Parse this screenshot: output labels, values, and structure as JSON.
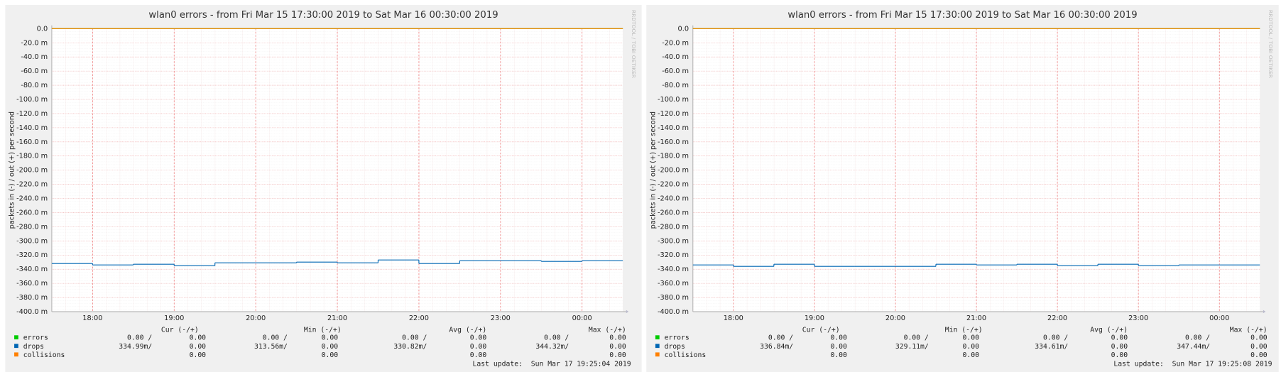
{
  "chart_data": [
    {
      "type": "line",
      "title": "wlan0 errors - from Fri Mar 15 17:30:00 2019 to Sat Mar 16 00:30:00 2019",
      "y_label": "packets in (-) / out (+) per second",
      "watermark": "RRDTOOL / TOBI OETIKER",
      "x": [
        17.5,
        18,
        18.5,
        19,
        19.5,
        20,
        20.5,
        21,
        21.5,
        22,
        22.5,
        23,
        23.5,
        24
      ],
      "xlim": [
        17.5,
        24.5
      ],
      "xticks": [
        {
          "value": 18,
          "label": "18:00"
        },
        {
          "value": 19,
          "label": "19:00"
        },
        {
          "value": 20,
          "label": "20:00"
        },
        {
          "value": 21,
          "label": "21:00"
        },
        {
          "value": 22,
          "label": "22:00"
        },
        {
          "value": 23,
          "label": "23:00"
        },
        {
          "value": 24,
          "label": "00:00"
        }
      ],
      "ylim": [
        -400,
        0
      ],
      "yticks": [
        {
          "value": 0,
          "label": "0.0"
        },
        {
          "value": -20,
          "label": "-20.0 m"
        },
        {
          "value": -40,
          "label": "-40.0 m"
        },
        {
          "value": -60,
          "label": "-60.0 m"
        },
        {
          "value": -80,
          "label": "-80.0 m"
        },
        {
          "value": -100,
          "label": "-100.0 m"
        },
        {
          "value": -120,
          "label": "-120.0 m"
        },
        {
          "value": -140,
          "label": "-140.0 m"
        },
        {
          "value": -160,
          "label": "-160.0 m"
        },
        {
          "value": -180,
          "label": "-180.0 m"
        },
        {
          "value": -200,
          "label": "-200.0 m"
        },
        {
          "value": -220,
          "label": "-220.0 m"
        },
        {
          "value": -240,
          "label": "-240.0 m"
        },
        {
          "value": -260,
          "label": "-260.0 m"
        },
        {
          "value": -280,
          "label": "-280.0 m"
        },
        {
          "value": -300,
          "label": "-300.0 m"
        },
        {
          "value": -320,
          "label": "-320.0 m"
        },
        {
          "value": -340,
          "label": "-340.0 m"
        },
        {
          "value": -360,
          "label": "-360.0 m"
        },
        {
          "value": -380,
          "label": "-380.0 m"
        },
        {
          "value": -400,
          "label": "-400.0 m"
        }
      ],
      "grid": true,
      "stat_headers": [
        "Cur (-/+)",
        "Min (-/+)",
        "Avg (-/+)",
        "Max (-/+)"
      ],
      "series": [
        {
          "name": "errors",
          "color": "#00cc00",
          "values": [
            0,
            0,
            0,
            0,
            0,
            0,
            0,
            0,
            0,
            0,
            0,
            0,
            0,
            0
          ],
          "stats": [
            "0.00 /",
            "0.00",
            "0.00 /",
            "0.00",
            "0.00 /",
            "0.00",
            "0.00 /",
            "0.00"
          ]
        },
        {
          "name": "drops",
          "color": "#0066b3",
          "values": [
            -332,
            -334,
            -333,
            -335,
            -331,
            -331,
            -330,
            -331,
            -327,
            -332,
            -328,
            -328,
            -329,
            -328
          ],
          "stats": [
            "334.99m/",
            "0.00",
            "313.56m/",
            "0.00",
            "330.82m/",
            "0.00",
            "344.32m/",
            "0.00"
          ]
        },
        {
          "name": "collisions",
          "color": "#ff8000",
          "values": [
            0,
            0,
            0,
            0,
            0,
            0,
            0,
            0,
            0,
            0,
            0,
            0,
            0,
            0
          ],
          "stats": [
            "0.00",
            "0.00",
            "0.00",
            "0.00"
          ]
        }
      ],
      "last_update": "Last update:  Sun Mar 17 19:25:04 2019"
    },
    {
      "type": "line",
      "title": "wlan0 errors - from Fri Mar 15 17:30:00 2019 to Sat Mar 16 00:30:00 2019",
      "y_label": "packets in (-) / out (+) per second",
      "watermark": "RRDTOOL / TOBI OETIKER",
      "x": [
        17.5,
        18,
        18.5,
        19,
        19.5,
        20,
        20.5,
        21,
        21.5,
        22,
        22.5,
        23,
        23.5,
        24
      ],
      "xlim": [
        17.5,
        24.5
      ],
      "xticks": [
        {
          "value": 18,
          "label": "18:00"
        },
        {
          "value": 19,
          "label": "19:00"
        },
        {
          "value": 20,
          "label": "20:00"
        },
        {
          "value": 21,
          "label": "21:00"
        },
        {
          "value": 22,
          "label": "22:00"
        },
        {
          "value": 23,
          "label": "23:00"
        },
        {
          "value": 24,
          "label": "00:00"
        }
      ],
      "ylim": [
        -400,
        0
      ],
      "yticks": [
        {
          "value": 0,
          "label": "0.0"
        },
        {
          "value": -20,
          "label": "-20.0 m"
        },
        {
          "value": -40,
          "label": "-40.0 m"
        },
        {
          "value": -60,
          "label": "-60.0 m"
        },
        {
          "value": -80,
          "label": "-80.0 m"
        },
        {
          "value": -100,
          "label": "-100.0 m"
        },
        {
          "value": -120,
          "label": "-120.0 m"
        },
        {
          "value": -140,
          "label": "-140.0 m"
        },
        {
          "value": -160,
          "label": "-160.0 m"
        },
        {
          "value": -180,
          "label": "-180.0 m"
        },
        {
          "value": -200,
          "label": "-200.0 m"
        },
        {
          "value": -220,
          "label": "-220.0 m"
        },
        {
          "value": -240,
          "label": "-240.0 m"
        },
        {
          "value": -260,
          "label": "-260.0 m"
        },
        {
          "value": -280,
          "label": "-280.0 m"
        },
        {
          "value": -300,
          "label": "-300.0 m"
        },
        {
          "value": -320,
          "label": "-320.0 m"
        },
        {
          "value": -340,
          "label": "-340.0 m"
        },
        {
          "value": -360,
          "label": "-360.0 m"
        },
        {
          "value": -380,
          "label": "-380.0 m"
        },
        {
          "value": -400,
          "label": "-400.0 m"
        }
      ],
      "grid": true,
      "stat_headers": [
        "Cur (-/+)",
        "Min (-/+)",
        "Avg (-/+)",
        "Max (-/+)"
      ],
      "series": [
        {
          "name": "errors",
          "color": "#00cc00",
          "values": [
            0,
            0,
            0,
            0,
            0,
            0,
            0,
            0,
            0,
            0,
            0,
            0,
            0,
            0
          ],
          "stats": [
            "0.00 /",
            "0.00",
            "0.00 /",
            "0.00",
            "0.00 /",
            "0.00",
            "0.00 /",
            "0.00"
          ]
        },
        {
          "name": "drops",
          "color": "#0066b3",
          "values": [
            -334,
            -336,
            -333,
            -336,
            -336,
            -336,
            -333,
            -334,
            -333,
            -335,
            -333,
            -335,
            -334,
            -334
          ],
          "stats": [
            "336.84m/",
            "0.00",
            "329.11m/",
            "0.00",
            "334.61m/",
            "0.00",
            "347.44m/",
            "0.00"
          ]
        },
        {
          "name": "collisions",
          "color": "#ff8000",
          "values": [
            0,
            0,
            0,
            0,
            0,
            0,
            0,
            0,
            0,
            0,
            0,
            0,
            0,
            0
          ],
          "stats": [
            "0.00",
            "0.00",
            "0.00",
            "0.00"
          ]
        }
      ],
      "last_update": "Last update:  Sun Mar 17 19:25:08 2019"
    }
  ]
}
